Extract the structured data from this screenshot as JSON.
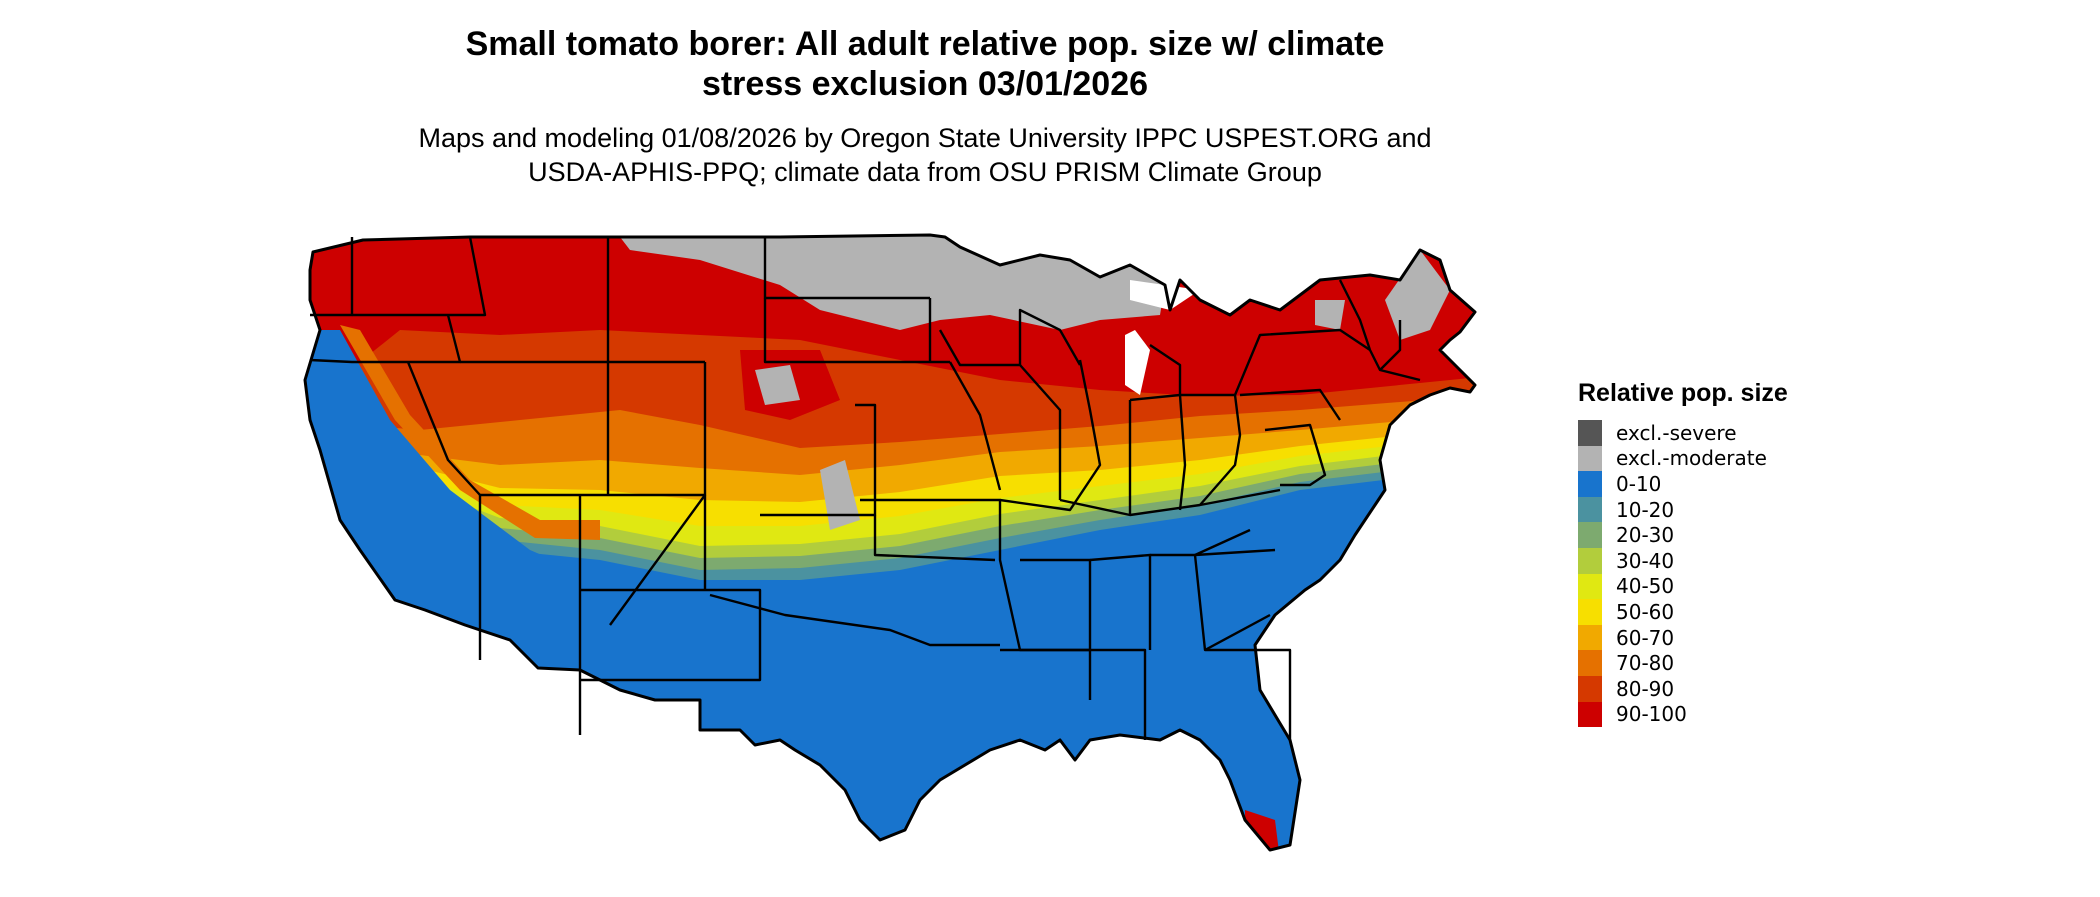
{
  "map": {
    "title_line1": "Small tomato borer: All adult relative pop. size w/ climate",
    "title_line2": "stress exclusion 03/01/2026",
    "subtitle_line1": "Maps and modeling 01/08/2026 by Oregon State University IPPC USPEST.ORG and",
    "subtitle_line2": "USDA-APHIS-PPQ; climate data from OSU PRISM Climate Group",
    "region": "Contiguous United States",
    "legend": {
      "title": "Relative pop. size",
      "items": [
        {
          "label": "excl.-severe",
          "color": "#555555"
        },
        {
          "label": "excl.-moderate",
          "color": "#b3b3b3"
        },
        {
          "label": "0-10",
          "color": "#1874cd"
        },
        {
          "label": "10-20",
          "color": "#4b92a0"
        },
        {
          "label": "20-30",
          "color": "#7daa6f"
        },
        {
          "label": "30-40",
          "color": "#b2cd3c"
        },
        {
          "label": "40-50",
          "color": "#e0e812"
        },
        {
          "label": "50-60",
          "color": "#f7df00"
        },
        {
          "label": "60-70",
          "color": "#f1a900"
        },
        {
          "label": "70-80",
          "color": "#e57100"
        },
        {
          "label": "80-90",
          "color": "#d53900"
        },
        {
          "label": "90-100",
          "color": "#cd0000"
        }
      ]
    }
  }
}
